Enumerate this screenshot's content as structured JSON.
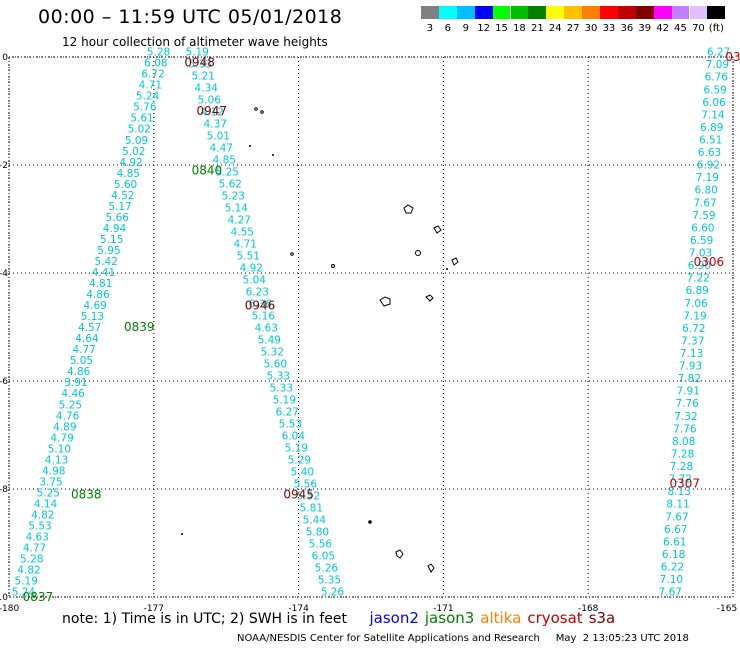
{
  "title": "00:00 – 11:59 UTC 05/01/2018",
  "subtitle": "12 hour collection of altimeter wave heights",
  "colorbar": {
    "colors": [
      "#808080",
      "#00ffff",
      "#00bfff",
      "#0000ff",
      "#00ff00",
      "#00c000",
      "#008000",
      "#ffff00",
      "#ffc000",
      "#ff8000",
      "#ff0000",
      "#c00000",
      "#800000",
      "#ff00ff",
      "#c080ff",
      "#e0c0ff",
      "#000000"
    ],
    "labels": [
      "3",
      "6",
      "9",
      "12",
      "15",
      "18",
      "21",
      "24",
      "27",
      "30",
      "33",
      "36",
      "39",
      "42",
      "45",
      "70",
      "(ft)"
    ]
  },
  "map": {
    "lon_min": -180,
    "lon_max": -165,
    "lat_min": -10,
    "lat_max": 0,
    "x_ticks": [
      "-180",
      "-177",
      "-174",
      "-171",
      "-168",
      "-165"
    ],
    "y_ticks": [
      "0",
      "-2",
      "-4",
      "-6",
      "-8",
      "-10"
    ],
    "x_tick_values": [
      -180,
      -177,
      -174,
      -171,
      -168,
      -165
    ],
    "y_tick_values": [
      0,
      -2,
      -4,
      -6,
      -8,
      -10
    ],
    "grid": true
  },
  "tracks": [
    {
      "color": "#00c8d8",
      "start": [
        -176.9,
        0.1
      ],
      "end": [
        -179.7,
        -9.9
      ],
      "values": [
        "5.28",
        "6.08",
        "6.72",
        "4.71",
        "5.24",
        "5.76",
        "5.61",
        "5.02",
        "5.09",
        "5.02",
        "4.92",
        "4.85",
        "5.60",
        "4.52",
        "5.17",
        "5.66",
        "4.94",
        "5.15",
        "5.95",
        "5.42",
        "4.41",
        "4.81",
        "4.86",
        "4.69",
        "5.13",
        "4.57",
        "4.64",
        "4.77",
        "5.05",
        "4.86",
        "3.91",
        "4.46",
        "5.25",
        "4.76",
        "4.89",
        "4.79",
        "5.10",
        "4.13",
        "4.98",
        "3.75",
        "5.25",
        "4.14",
        "4.82",
        "5.53",
        "4.63",
        "4.77",
        "5.28",
        "4.82",
        "5.19",
        "5.24"
      ]
    },
    {
      "color": "#00c8d8",
      "start": [
        -176.1,
        0.1
      ],
      "end": [
        -173.3,
        -9.9
      ],
      "values": [
        "5.19",
        "5.33",
        "5.21",
        "4.34",
        "5.06",
        "4.12",
        "4.37",
        "5.01",
        "4.47",
        "4.85",
        "5.25",
        "5.62",
        "5.23",
        "5.14",
        "4.27",
        "4.55",
        "4.71",
        "5.51",
        "4.92",
        "5.04",
        "6.23",
        "6.36",
        "5.16",
        "4.63",
        "5.49",
        "5.32",
        "5.60",
        "5.33",
        "5.33",
        "5.19",
        "6.27",
        "5.53",
        "6.04",
        "5.19",
        "5.29",
        "5.40",
        "5.56",
        "5.52",
        "5.81",
        "5.44",
        "5.80",
        "5.56",
        "6.05",
        "5.26",
        "5.35",
        "5.26"
      ]
    },
    {
      "color": "#00c8d8",
      "start": [
        -165.3,
        0.1
      ],
      "end": [
        -166.3,
        -9.9
      ],
      "values": [
        "6.27",
        "7.09",
        "6.76",
        "6.59",
        "6.06",
        "7.14",
        "6.89",
        "6.51",
        "6.63",
        "6.92",
        "7.19",
        "6.80",
        "7.67",
        "7.59",
        "6.60",
        "6.59",
        "7.03",
        "6.90",
        "7.22",
        "6.89",
        "7.06",
        "7.19",
        "6.72",
        "7.37",
        "7.13",
        "7.93",
        "7.82",
        "7.91",
        "7.76",
        "7.32",
        "7.76",
        "8.08",
        "7.28",
        "7.28",
        "7.72",
        "8.13",
        "8.11",
        "7.67",
        "6.67",
        "6.61",
        "6.18",
        "6.22",
        "7.10",
        "7.67"
      ]
    }
  ],
  "time_labels": [
    {
      "text": "0948",
      "color": "#800000",
      "lon": -176.05,
      "lat": -0.1
    },
    {
      "text": "0947",
      "color": "#800000",
      "lon": -175.8,
      "lat": -1.0
    },
    {
      "text": "0840",
      "color": "#008000",
      "lon": -175.9,
      "lat": -2.1
    },
    {
      "text": "0946",
      "color": "#800000",
      "lon": -174.8,
      "lat": -4.6
    },
    {
      "text": "0839",
      "color": "#008000",
      "lon": -177.3,
      "lat": -5.0
    },
    {
      "text": "0945",
      "color": "#800000",
      "lon": -174.0,
      "lat": -8.1
    },
    {
      "text": "0838",
      "color": "#008000",
      "lon": -178.4,
      "lat": -8.1
    },
    {
      "text": "0837",
      "color": "#008000",
      "lon": -179.4,
      "lat": -10.0
    },
    {
      "text": "0306",
      "color": "#c00000",
      "lon": -165.5,
      "lat": -3.8
    },
    {
      "text": "0307",
      "color": "#c00000",
      "lon": -166.0,
      "lat": -7.9
    },
    {
      "text": "03",
      "color": "#c00000",
      "lon": -165.0,
      "lat": 0.0
    }
  ],
  "note": {
    "text": "note:  1) Time is in UTC;  2) SWH is in feet",
    "satellites": [
      {
        "name": "jason2",
        "color": "#0000ff"
      },
      {
        "name": "jason3",
        "color": "#008000"
      },
      {
        "name": "altika",
        "color": "#ff8000"
      },
      {
        "name": "cryosat",
        "color": "#c00000"
      },
      {
        "name": "s3a",
        "color": "#800000"
      }
    ]
  },
  "credit": "NOAA/NESDIS Center for Satellite Applications and Research     May  2 13:05:23 UTC 2018"
}
